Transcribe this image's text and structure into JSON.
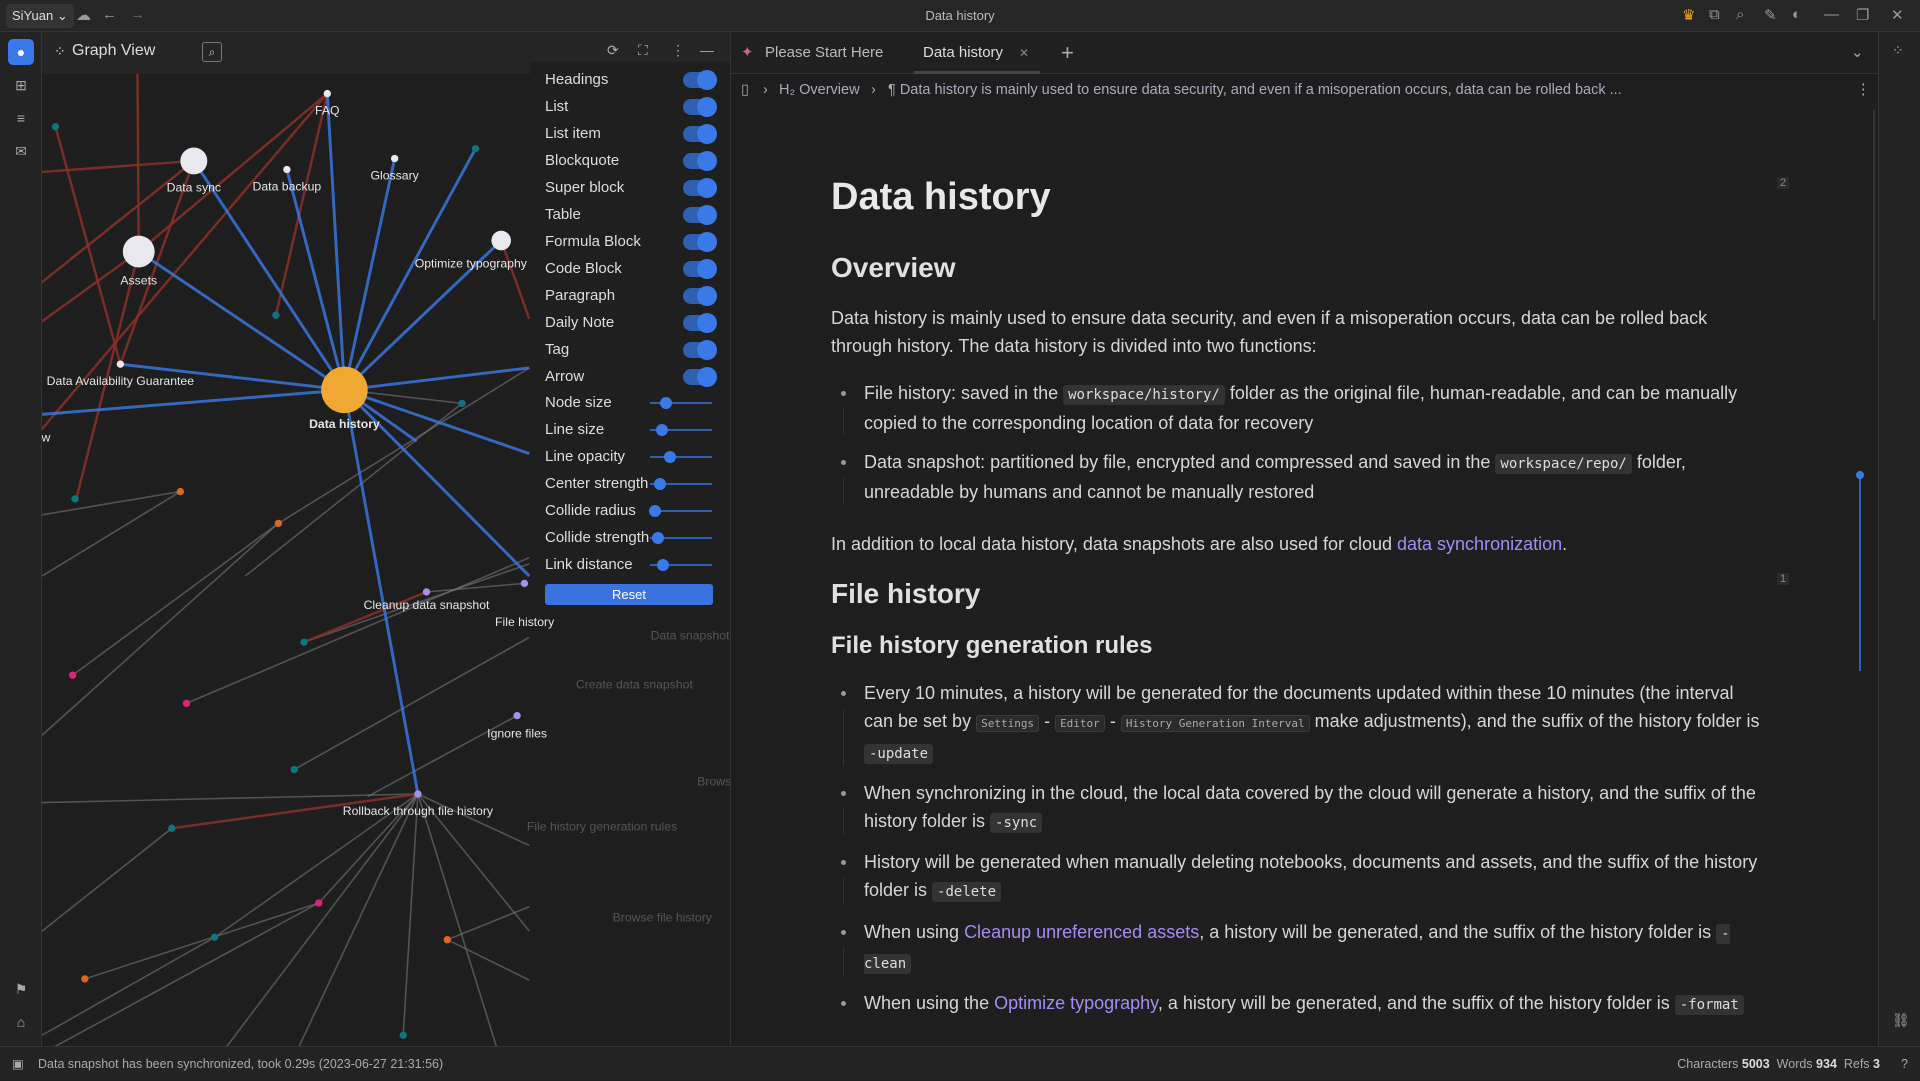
{
  "titlebar": {
    "workspace": "SiYuan",
    "title": "Data history",
    "icons": [
      "cloud-icon",
      "back-arrow-icon",
      "forward-arrow-icon",
      "crown-icon",
      "plugin-icon",
      "search-icon",
      "pencil-icon",
      "theme-icon",
      "minimize-icon",
      "maximize-icon",
      "close-icon"
    ]
  },
  "graph": {
    "title": "Graph View",
    "nodes": [
      "Data history",
      "Assets",
      "Data sync",
      "FAQ",
      "Data backup",
      "Glossary",
      "Optimize typography",
      "Data Availability Guarantee",
      "Overview",
      "Cleanup data snapshot",
      "File history",
      "Ignore files",
      "Rollback through file history"
    ],
    "faded_labels": [
      "Create data snapshot",
      "Browse file history",
      "Data snapshot",
      "File history generation rules",
      "Browse"
    ],
    "colors": {
      "center": "#f0a832",
      "node": "#e8e8ee",
      "ref_link": "#3a7ae8",
      "backlink": "#8b3028",
      "teal": "#0e7480",
      "orange": "#e0651e",
      "pink": "#e0207a",
      "purple": "#a690e8"
    },
    "settings": {
      "toggles": [
        {
          "label": "Headings",
          "on": true
        },
        {
          "label": "List",
          "on": true
        },
        {
          "label": "List item",
          "on": true
        },
        {
          "label": "Blockquote",
          "on": true
        },
        {
          "label": "Super block",
          "on": true
        },
        {
          "label": "Table",
          "on": true
        },
        {
          "label": "Formula Block",
          "on": true
        },
        {
          "label": "Code Block",
          "on": true
        },
        {
          "label": "Paragraph",
          "on": true
        },
        {
          "label": "Daily Note",
          "on": true
        },
        {
          "label": "Tag",
          "on": true
        },
        {
          "label": "Arrow",
          "on": true
        }
      ],
      "sliders": [
        {
          "label": "Node size",
          "value": 0.25
        },
        {
          "label": "Line size",
          "value": 0.19
        },
        {
          "label": "Line opacity",
          "value": 0.32
        },
        {
          "label": "Center strength",
          "value": 0.16
        },
        {
          "label": "Collide radius",
          "value": 0.08
        },
        {
          "label": "Collide strength",
          "value": 0.13
        },
        {
          "label": "Link distance",
          "value": 0.21
        }
      ],
      "reset_label": "Reset"
    }
  },
  "tabs": [
    {
      "label": "Please Start Here",
      "active": false
    },
    {
      "label": "Data history",
      "active": true
    }
  ],
  "breadcrumb": {
    "heading_marker": "H₂",
    "heading": "Overview",
    "paragraph_marker": "¶",
    "paragraph": "Data history is mainly used to ensure data security, and even if a misoperation occurs, data can be rolled back ..."
  },
  "doc": {
    "title": "Data history",
    "h_overview": "Overview",
    "p1": [
      {
        "t": "Data history is mainly used to ensure data security, and even if a misoperation occurs, data can be rolled back through history. The data history is divided into two functions:"
      }
    ],
    "list1": [
      [
        {
          "t": "File history: saved in the "
        },
        {
          "t": "workspace/history/",
          "k": "code"
        },
        {
          "t": " folder as the original file, human-readable, and can be manually copied to the corresponding location of data for recovery"
        }
      ],
      [
        {
          "t": "Data snapshot: partitioned by file, encrypted and compressed and saved in the "
        },
        {
          "t": "workspace/repo/",
          "k": "code"
        },
        {
          "t": " folder, unreadable by humans and cannot be manually restored"
        }
      ]
    ],
    "p2": [
      {
        "t": "In addition to local data history, data snapshots are also used for cloud "
      },
      {
        "t": "data synchronization",
        "k": "link"
      },
      {
        "t": "."
      }
    ],
    "h_file_history": "File history",
    "h_rules": "File history generation rules",
    "list2": [
      [
        {
          "t": "Every 10 minutes, a history will be generated for the documents updated within these 10 minutes (the interval can be set by "
        },
        {
          "t": "Settings",
          "k": "kbd"
        },
        {
          "t": " - "
        },
        {
          "t": "Editor",
          "k": "kbd"
        },
        {
          "t": " - "
        },
        {
          "t": "History Generation Interval",
          "k": "kbd"
        },
        {
          "t": " make adjustments), and the suffix of the history folder is "
        },
        {
          "t": "-update",
          "k": "code"
        }
      ],
      [
        {
          "t": "When synchronizing in the cloud, the local data covered by the cloud will generate a history, and the suffix of the history folder is "
        },
        {
          "t": "-sync",
          "k": "code"
        }
      ],
      [
        {
          "t": "History will be generated when manually deleting notebooks, documents and assets, and the suffix of the history folder is "
        },
        {
          "t": "-delete",
          "k": "code"
        }
      ],
      [
        {
          "t": "When using "
        },
        {
          "t": "Cleanup unreferenced assets",
          "k": "link"
        },
        {
          "t": ", a history will be generated, and the suffix of the history folder is "
        },
        {
          "t": "-clean",
          "k": "code"
        }
      ],
      [
        {
          "t": "When using the "
        },
        {
          "t": "Optimize typography",
          "k": "link"
        },
        {
          "t": ", a history will be generated, and the suffix of the history folder is "
        },
        {
          "t": "-format",
          "k": "code"
        }
      ]
    ],
    "ref_counts": [
      "2",
      "1"
    ]
  },
  "status": {
    "message": "Data snapshot has been synchronized, took 0.29s (2023-06-27 21:31:56)",
    "characters_label": "Characters",
    "characters": "5003",
    "words_label": "Words",
    "words": "934",
    "refs_label": "Refs",
    "refs": "3",
    "help": "?"
  }
}
